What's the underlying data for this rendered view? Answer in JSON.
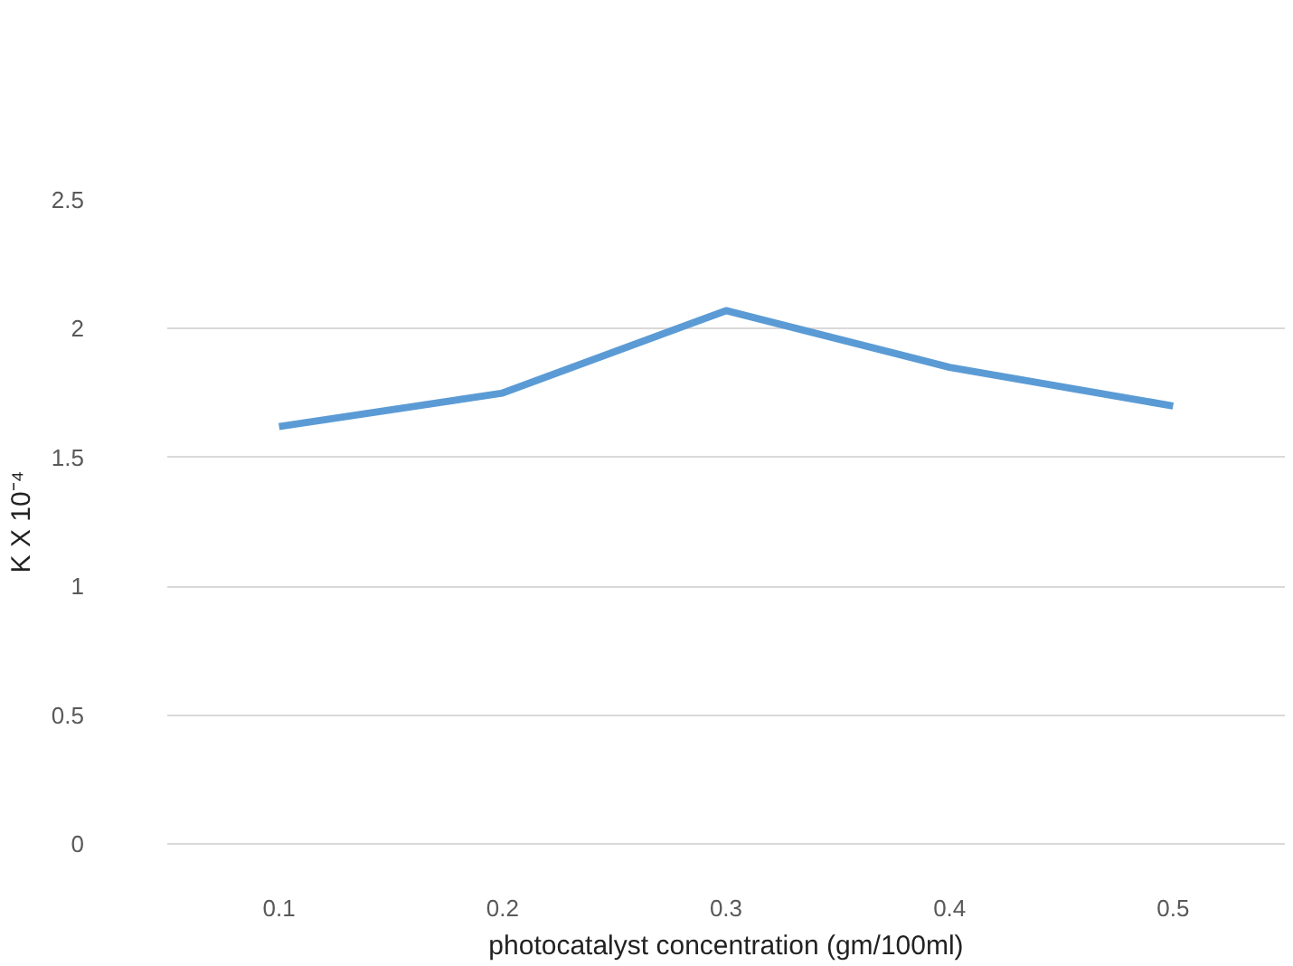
{
  "chart_data": {
    "type": "line",
    "xlabel": "photocatalyst concentration (gm/100ml)",
    "ylabel": "K X 10⁻⁴",
    "categories": [
      "0.1",
      "0.2",
      "0.3",
      "0.4",
      "0.5"
    ],
    "series": [
      {
        "color": "#5b9bd5",
        "values": [
          1.62,
          1.75,
          2.07,
          1.85,
          1.7
        ]
      }
    ],
    "ylim": [
      0,
      2.5
    ],
    "yticks": [
      0,
      0.5,
      1,
      1.5,
      2,
      2.5
    ],
    "grid": "y",
    "marker": "none",
    "line_style": "solid"
  }
}
